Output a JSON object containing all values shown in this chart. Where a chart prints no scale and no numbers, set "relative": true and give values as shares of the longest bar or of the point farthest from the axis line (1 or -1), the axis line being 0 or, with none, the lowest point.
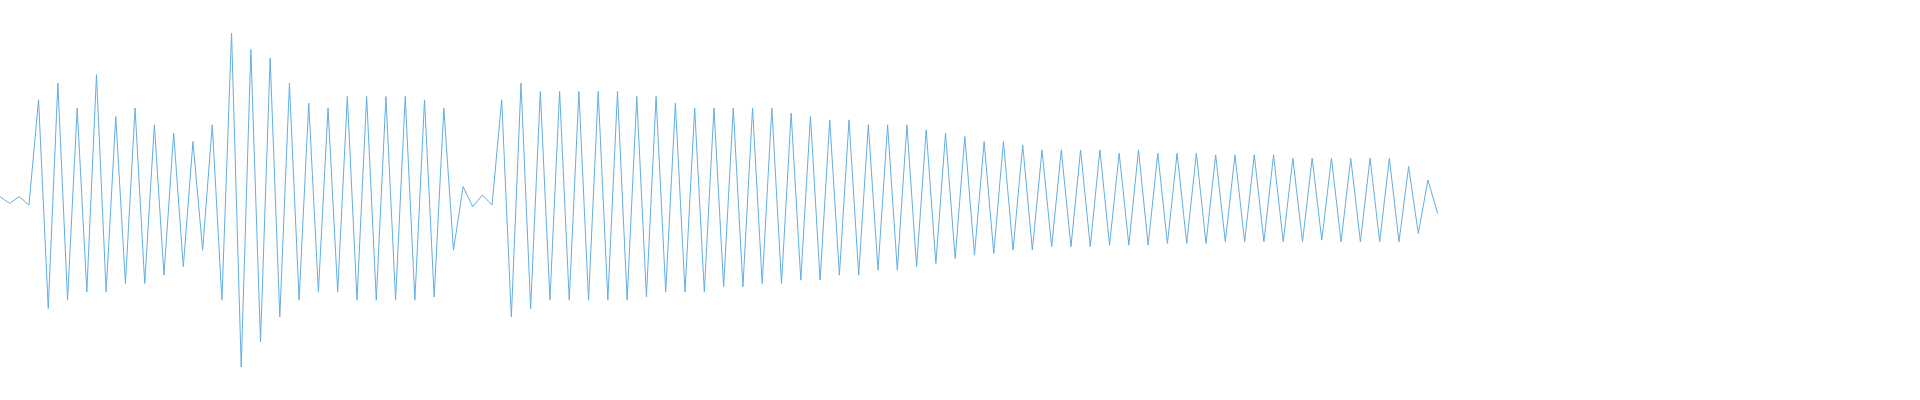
{
  "chart_data": {
    "type": "line",
    "relative": true,
    "color": "#62aee3",
    "marker": "none",
    "tick_labels": false,
    "categories": [
      null,
      null,
      null,
      null,
      null,
      null,
      null,
      null,
      null,
      null,
      null,
      null,
      null,
      null,
      null,
      null,
      null,
      null,
      null,
      null,
      null,
      null,
      null,
      null,
      null,
      null,
      null,
      null,
      null,
      null,
      null,
      null,
      null,
      null,
      null,
      null,
      null,
      null,
      null,
      null,
      null,
      null,
      null,
      null,
      null,
      null,
      null,
      null,
      null,
      null,
      null,
      null,
      null,
      null,
      null,
      null,
      null,
      null,
      null,
      null,
      null,
      null,
      null,
      null,
      null,
      null,
      null,
      null,
      null,
      null,
      null,
      null,
      null,
      null,
      null,
      null,
      null,
      null,
      null,
      null,
      null,
      null,
      null,
      null,
      null,
      null,
      null,
      null,
      null,
      null,
      null,
      null,
      null,
      null,
      null,
      null,
      null,
      null,
      null,
      null,
      null,
      null,
      null,
      null,
      null,
      null,
      null,
      null,
      null,
      null,
      null,
      null,
      null,
      null,
      null,
      null,
      null,
      null,
      null,
      null,
      null,
      null,
      null,
      null,
      null,
      null,
      null,
      null,
      null,
      null,
      null,
      null,
      null,
      null,
      null,
      null,
      null,
      null,
      null,
      null,
      null,
      null,
      null,
      null,
      null,
      null,
      null,
      null,
      null,
      null,
      null,
      null,
      null,
      null,
      null,
      null,
      null,
      null,
      null,
      null,
      null,
      null,
      null,
      null,
      null,
      null,
      null,
      null,
      null,
      null,
      null,
      null,
      null,
      null,
      null,
      null,
      null,
      null,
      null,
      null,
      null,
      null,
      null,
      null,
      null,
      null,
      null,
      null,
      null,
      null,
      null,
      null,
      null,
      null,
      null,
      null,
      null,
      null,
      null,
      null
    ],
    "values": [
      0.51,
      0.49,
      0.51,
      0.485,
      0.8,
      0.175,
      0.85,
      0.2,
      0.775,
      0.225,
      0.875,
      0.225,
      0.75,
      0.25,
      0.775,
      0.25,
      0.725,
      0.275,
      0.7,
      0.3,
      0.675,
      0.35,
      0.725,
      0.2,
      1,
      0,
      0.95,
      0.075,
      0.925,
      0.15,
      0.85,
      0.2,
      0.79,
      0.225,
      0.775,
      0.225,
      0.81,
      0.2,
      0.81,
      0.2,
      0.81,
      0.2,
      0.81,
      0.2,
      0.8,
      0.21,
      0.775,
      0.35,
      0.54,
      0.48,
      0.515,
      0.485,
      0.8,
      0.15,
      0.85,
      0.175,
      0.825,
      0.2,
      0.825,
      0.2,
      0.825,
      0.2,
      0.825,
      0.2,
      0.825,
      0.2,
      0.81,
      0.21,
      0.81,
      0.225,
      0.79,
      0.225,
      0.775,
      0.225,
      0.775,
      0.24,
      0.775,
      0.24,
      0.775,
      0.25,
      0.775,
      0.25,
      0.76,
      0.26,
      0.75,
      0.26,
      0.74,
      0.275,
      0.74,
      0.275,
      0.725,
      0.29,
      0.725,
      0.29,
      0.725,
      0.3,
      0.71,
      0.31,
      0.7,
      0.325,
      0.69,
      0.335,
      0.675,
      0.34,
      0.675,
      0.35,
      0.665,
      0.35,
      0.65,
      0.36,
      0.65,
      0.36,
      0.65,
      0.36,
      0.65,
      0.365,
      0.64,
      0.365,
      0.65,
      0.365,
      0.64,
      0.37,
      0.64,
      0.37,
      0.64,
      0.37,
      0.635,
      0.375,
      0.635,
      0.375,
      0.635,
      0.375,
      0.635,
      0.375,
      0.625,
      0.375,
      0.625,
      0.38,
      0.625,
      0.375,
      0.625,
      0.375,
      0.625,
      0.375,
      0.625,
      0.375,
      0.6,
      0.4,
      0.56,
      0.46,
      null,
      null,
      null,
      null,
      null,
      null,
      null,
      null,
      null,
      null,
      null,
      null,
      null,
      null,
      null,
      null,
      null,
      null,
      null,
      null,
      null,
      null,
      null,
      null,
      null,
      null,
      null,
      null,
      null,
      null,
      null,
      null,
      null,
      null,
      null,
      null,
      null,
      null,
      null,
      null,
      null,
      null,
      null,
      null,
      null,
      null,
      null,
      null,
      null,
      null
    ]
  }
}
